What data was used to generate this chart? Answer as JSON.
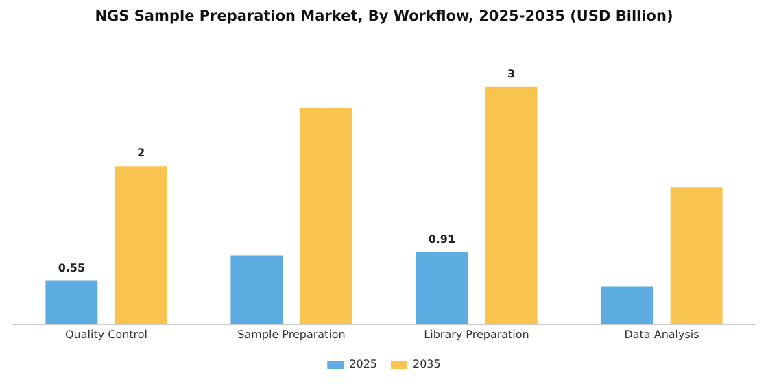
{
  "chart_data": {
    "type": "bar",
    "title": "NGS Sample Preparation Market, By Workflow, 2025-2035 (USD Billion)",
    "categories": [
      "Quality Control",
      "Sample Preparation",
      "Library Preparation",
      "Data Analysis"
    ],
    "series": [
      {
        "name": "2025",
        "color": "#5dade2",
        "values": [
          0.55,
          0.87,
          0.91,
          0.48
        ],
        "value_labels": [
          "0.55",
          null,
          "0.91",
          null
        ]
      },
      {
        "name": "2035",
        "color": "#f9c34f",
        "values": [
          2,
          2.73,
          3,
          1.73
        ],
        "value_labels": [
          "2",
          null,
          "3",
          null
        ]
      }
    ],
    "legend": "bottom",
    "grid": false
  }
}
